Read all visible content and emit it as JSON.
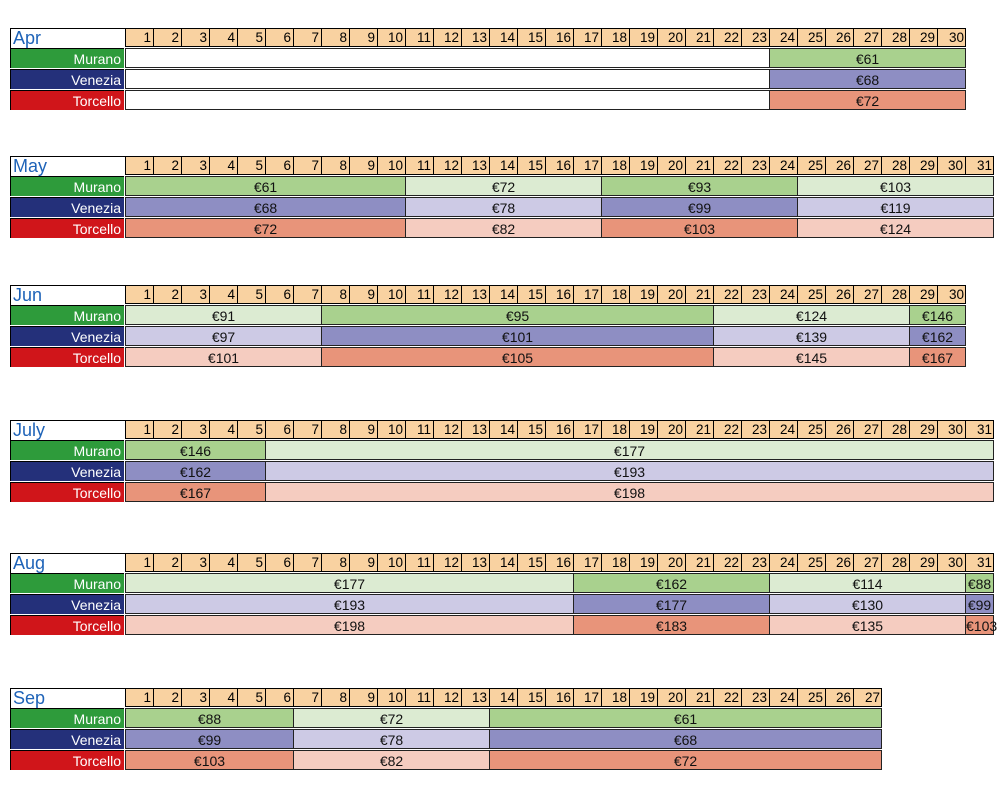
{
  "islands": [
    "Murano",
    "Venezia",
    "Torcello"
  ],
  "colors": {
    "label": [
      "#2e9b3b",
      "#24307a",
      "#d0151a"
    ],
    "dark": [
      "#a9d18e",
      "#8e8ec3",
      "#e8947a"
    ],
    "light": [
      "#dcebd2",
      "#cdcae5",
      "#f5ccc0"
    ],
    "empty": "#ffffff",
    "days": "#f9d2a1",
    "month_label": "#1e63b8"
  },
  "months": [
    {
      "name": "Apr",
      "days": 30,
      "segments": [
        {
          "from": 1,
          "to": 23,
          "tone": "empty",
          "prices": [
            "",
            "",
            ""
          ]
        },
        {
          "from": 24,
          "to": 30,
          "tone": "dark",
          "prices": [
            "€61",
            "€68",
            "€72"
          ]
        }
      ]
    },
    {
      "name": "May",
      "days": 31,
      "segments": [
        {
          "from": 1,
          "to": 10,
          "tone": "dark",
          "prices": [
            "€61",
            "€68",
            "€72"
          ]
        },
        {
          "from": 11,
          "to": 17,
          "tone": "light",
          "prices": [
            "€72",
            "€78",
            "€82"
          ]
        },
        {
          "from": 18,
          "to": 24,
          "tone": "dark",
          "prices": [
            "€93",
            "€99",
            "€103"
          ]
        },
        {
          "from": 25,
          "to": 31,
          "tone": "light",
          "prices": [
            "€103",
            "€119",
            "€124"
          ]
        }
      ]
    },
    {
      "name": "Jun",
      "days": 30,
      "segments": [
        {
          "from": 1,
          "to": 7,
          "tone": "light",
          "prices": [
            "€91",
            "€97",
            "€101"
          ]
        },
        {
          "from": 8,
          "to": 21,
          "tone": "dark",
          "prices": [
            "€95",
            "€101",
            "€105"
          ]
        },
        {
          "from": 22,
          "to": 28,
          "tone": "light",
          "prices": [
            "€124",
            "€139",
            "€145"
          ]
        },
        {
          "from": 29,
          "to": 30,
          "tone": "dark",
          "prices": [
            "€146",
            "€162",
            "€167"
          ]
        }
      ]
    },
    {
      "name": "July",
      "days": 31,
      "segments": [
        {
          "from": 1,
          "to": 5,
          "tone": "dark",
          "prices": [
            "€146",
            "€162",
            "€167"
          ]
        },
        {
          "from": 6,
          "to": 31,
          "tone": "light",
          "prices": [
            "€177",
            "€193",
            "€198"
          ]
        }
      ]
    },
    {
      "name": "Aug",
      "days": 31,
      "segments": [
        {
          "from": 1,
          "to": 16,
          "tone": "light",
          "prices": [
            "€177",
            "€193",
            "€198"
          ]
        },
        {
          "from": 17,
          "to": 23,
          "tone": "dark",
          "prices": [
            "€162",
            "€177",
            "€183"
          ]
        },
        {
          "from": 24,
          "to": 30,
          "tone": "light",
          "prices": [
            "€114",
            "€130",
            "€135"
          ]
        },
        {
          "from": 31,
          "to": 31,
          "tone": "dark",
          "prices": [
            "€88",
            "€99",
            "€103"
          ]
        }
      ]
    },
    {
      "name": "Sep",
      "days": 27,
      "segments": [
        {
          "from": 1,
          "to": 6,
          "tone": "dark",
          "prices": [
            "€88",
            "€99",
            "€103"
          ]
        },
        {
          "from": 7,
          "to": 13,
          "tone": "light",
          "prices": [
            "€72",
            "€78",
            "€82"
          ]
        },
        {
          "from": 14,
          "to": 27,
          "tone": "dark",
          "prices": [
            "€61",
            "€68",
            "€72"
          ]
        }
      ]
    }
  ]
}
